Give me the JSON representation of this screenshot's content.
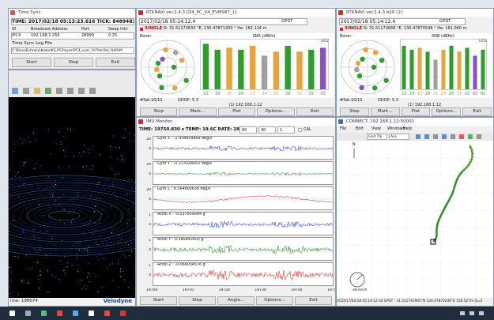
{
  "time_sync": {
    "title": "Time Sync",
    "time_line": "TIME: 2017/02/18 05:13:23.616  TICK: 848948381",
    "table": {
      "headers": [
        "ID",
        "Broadcast Address",
        "Port",
        "Swap Intv"
      ],
      "rows": [
        [
          "IPC4",
          "192.168.1.255",
          "28999",
          "0.25"
        ]
      ]
    },
    "log_label": "Time Sync Log File",
    "log_path": "C:\\RicoaExt\\rxky\\blobs\\KS_PC4\\sync\\PC4_sync_%Y%m%d_%H%M",
    "buttons": [
      "Start",
      "Stop",
      "Exit"
    ]
  },
  "velodyne": {
    "time": "ime: 198074",
    "brand": "Velodyne"
  },
  "rtknavi_left": {
    "title": "RTKNAVI ver.2.4.3 [D4_PC_V4_EVM987_1]",
    "time": "2017/02/18 05:14:12.4",
    "time_system": "GPST",
    "mode": "SINGLE",
    "position": "N: 31.51173630 °E: 130.47871300 ° He: 162.114 m",
    "rover": "Rover",
    "snr_label": "SNR (dBHz)",
    "sat_label": "G02",
    "sats": [
      "10",
      "14",
      "15",
      "20",
      "21",
      "24",
      "25",
      "29",
      "31",
      "32",
      "93"
    ],
    "snr": [
      46,
      40,
      42,
      40,
      44,
      34,
      38,
      44,
      38,
      40,
      42
    ],
    "colors": [
      "#2e9d2e",
      "#2e9d2e",
      "#e8a33a",
      "#2e9d2e",
      "#e8a33a",
      "#a0a0a0",
      "#e8a33a",
      "#2e9d2e",
      "#e8a33a",
      "#2e9d2e",
      "#8a4fc2"
    ],
    "sat_count": "#Sat:10/12",
    "gdop": "GDOP: 5.3",
    "stream": "(1) 192.168.1.12",
    "buttons": [
      "Stop",
      "Mark...",
      "Plot",
      "Options...",
      "Exit"
    ]
  },
  "rtknavi_right": {
    "title": "RTKNAVI ver.2.4.3 b20 (2)",
    "time": "2017/02/18 05:14:12.4",
    "time_system": "GPST",
    "mode": "SINGLE",
    "position": "N: 31.51173668 °E: 130.47870546 ° He: 161.060 m",
    "rover": "Rover",
    "snr_label": "SNR (dBHz)",
    "sat_label": "G02",
    "sats": [
      "10",
      "14",
      "15",
      "20",
      "21",
      "24",
      "25",
      "31",
      "32",
      "93",
      "01"
    ],
    "snr": [
      44,
      40,
      42,
      38,
      30,
      40,
      44,
      38,
      42,
      34,
      40
    ],
    "colors": [
      "#2e9d2e",
      "#2e9d2e",
      "#e8a33a",
      "#2e9d2e",
      "#a0a0a0",
      "#e8a33a",
      "#2e9d2e",
      "#e8a33a",
      "#2e9d2e",
      "#8a4fc2",
      "#2e9d2e"
    ],
    "sat_count": "#Sat:10/12",
    "gdop": "GDOP: 5.3",
    "stream": "(1) 192.168.1.12",
    "buttons": [
      "Stop",
      "Mark...",
      "Plot",
      "Options...",
      "Exit"
    ]
  },
  "imu": {
    "title": "IMU Monitor",
    "status": "TIME: 19750.830 s  TEMP: 19.6C  RATE: 28.0 kbps",
    "selects": [
      "60",
      "30",
      "1"
    ],
    "cal": "CAL",
    "plots": [
      {
        "label": "Gyro X : -2.458809669 deg/s",
        "yticks": [
          "20",
          "0"
        ]
      },
      {
        "label": "Gyro Y : -0.213328452 deg/s",
        "yticks": [
          "20",
          "0"
        ]
      },
      {
        "label": "Gyro Z : 8.564800636 deg/s",
        "yticks": [
          "20",
          "0"
        ]
      },
      {
        "label": "Accel X : -0.037859094 g",
        "yticks": [
          "1",
          "0"
        ]
      },
      {
        "label": "Accel Y : 0.280843402 g",
        "yticks": [
          "1",
          "0"
        ]
      },
      {
        "label": "Accel Z : -0.066034576 g",
        "yticks": [
          "1",
          "0"
        ]
      }
    ],
    "xticks": [
      "19700",
      "19710",
      "19720",
      "19730",
      "19740",
      "19750"
    ],
    "buttons": [
      "Start",
      "Stop",
      "Angle...",
      "Options...",
      "Exit"
    ]
  },
  "rtkplot": {
    "title": "CONNECT: 192.168.1.12:50001",
    "menu": [
      "File",
      "Edit",
      "View",
      "Windows",
      "Help"
    ],
    "selects": [
      "Gnd Trk",
      "ALL"
    ],
    "north": "N",
    "scale": "28 km/h",
    "status": "[X]2017/02/18 05:14:12.50 GPST : 31.511741905°N 130.47873246°E 156.527m Q=5"
  }
}
